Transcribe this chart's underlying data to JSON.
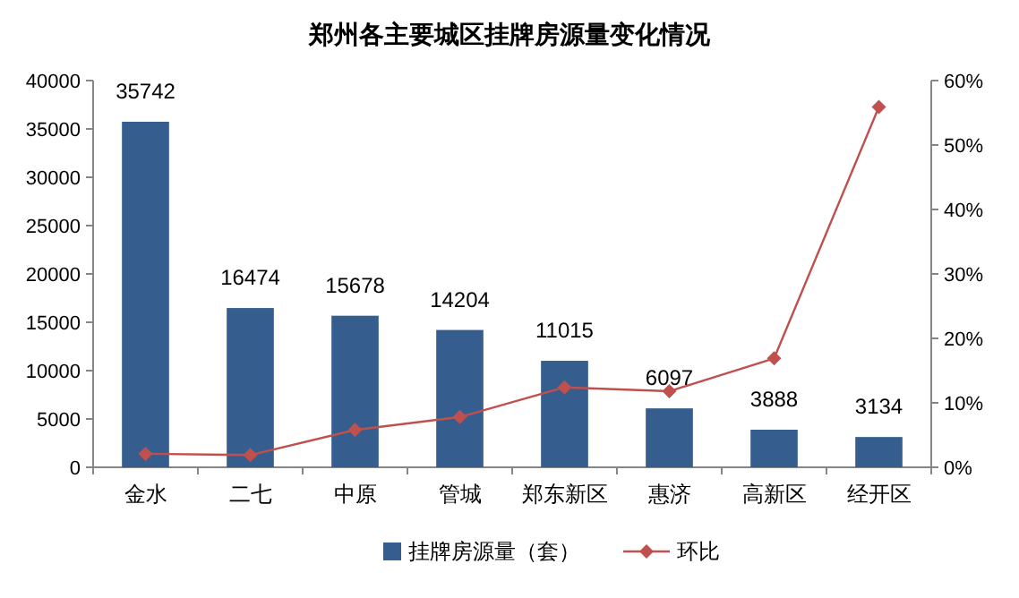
{
  "chart_data": {
    "type": "bar",
    "title": "郑州各主要城区挂牌房源量变化情况",
    "categories": [
      "金水",
      "二七",
      "中原",
      "管城",
      "郑东新区",
      "惠济",
      "高新区",
      "经开区"
    ],
    "series": [
      {
        "name": "挂牌房源量（套）",
        "color": "#355e8f",
        "values": [
          35742,
          16474,
          15678,
          14204,
          11015,
          6097,
          3888,
          3134
        ],
        "value_labels": [
          "35742",
          "16474",
          "15678",
          "14204",
          "11015",
          "6097",
          "3888",
          "3134"
        ]
      },
      {
        "name": "环比",
        "type": "line",
        "axis": "y2",
        "color": "#c0504d",
        "marker": "diamond",
        "line_style": "solid",
        "values": [
          2.1,
          1.9,
          5.8,
          7.8,
          12.4,
          11.8,
          16.9,
          55.9
        ]
      }
    ],
    "ylim": [
      0,
      40000
    ],
    "yticks": [
      0,
      5000,
      10000,
      15000,
      20000,
      25000,
      30000,
      35000,
      40000
    ],
    "y2lim": [
      0,
      60
    ],
    "y2ticks": [
      {
        "value": 0,
        "label": "0%"
      },
      {
        "value": 10,
        "label": "10%"
      },
      {
        "value": 20,
        "label": "20%"
      },
      {
        "value": 30,
        "label": "30%"
      },
      {
        "value": 40,
        "label": "40%"
      },
      {
        "value": 50,
        "label": "50%"
      },
      {
        "value": 60,
        "label": "60%"
      }
    ],
    "grid": false,
    "legend": "bottom"
  }
}
